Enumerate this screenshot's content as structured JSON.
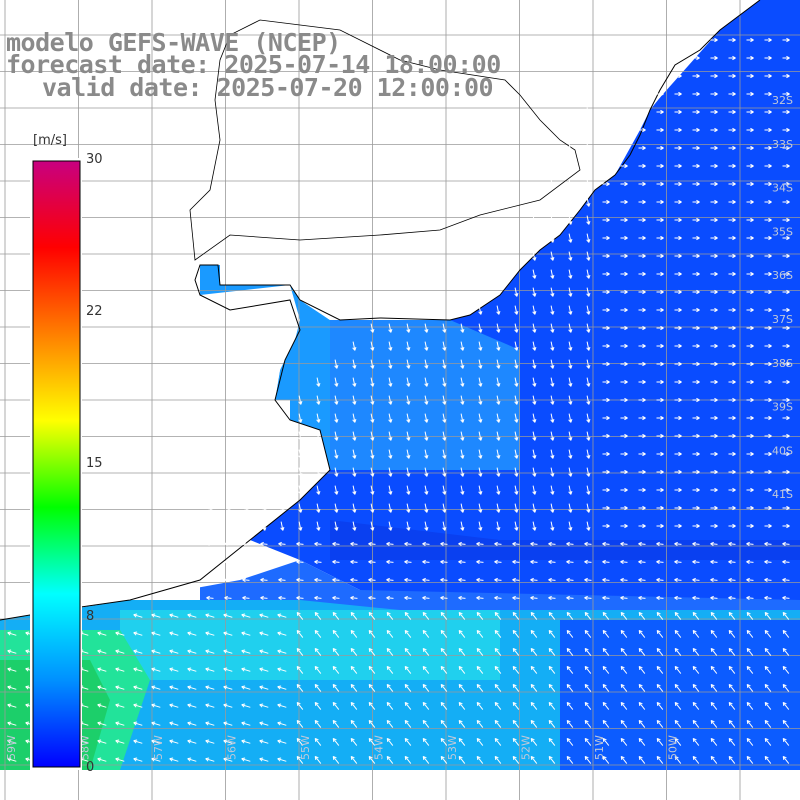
{
  "title": {
    "line1": "modelo GEFS-WAVE (NCEP)",
    "line2": "forecast date: 2025-07-14 18:00:00",
    "line3": "valid date: 2025-07-20 12:00:00"
  },
  "colorbar": {
    "unit": "[m/s]",
    "ticks": [
      "30",
      "22",
      "15",
      "8",
      "0"
    ],
    "tick_values": [
      30,
      22,
      15,
      8,
      0
    ],
    "range": [
      0,
      30
    ],
    "colors": [
      "#0000ff",
      "#0090ff",
      "#00ffff",
      "#00ff00",
      "#ffff00",
      "#ff7f00",
      "#ff0000",
      "#c80080"
    ]
  },
  "map": {
    "lat_labels": [
      "32S",
      "33S",
      "34S",
      "35S",
      "36S",
      "37S",
      "38S",
      "39S",
      "40S",
      "41S"
    ],
    "lon_labels": [
      "59W",
      "58W",
      "57W",
      "56W",
      "55W",
      "54W",
      "53W",
      "52W",
      "51W",
      "50W"
    ],
    "land_color": "#ffffff",
    "grid_color": "#9a9a9a",
    "coast_color": "#000000",
    "arrow_color": "#ffffff"
  }
}
